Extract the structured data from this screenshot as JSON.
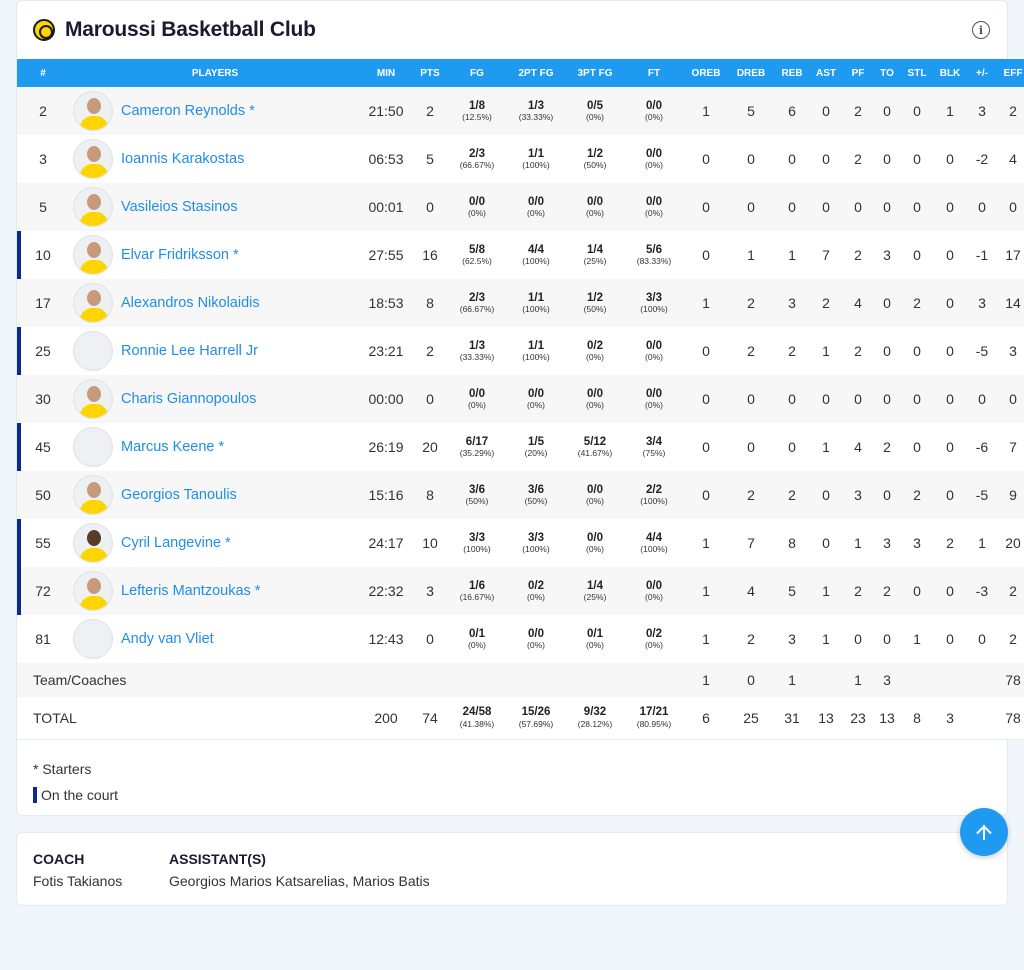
{
  "team": {
    "name": "Maroussi Basketball Club"
  },
  "columns": [
    "#",
    "PLAYERS",
    "MIN",
    "PTS",
    "FG",
    "2PT FG",
    "3PT FG",
    "FT",
    "OREB",
    "DREB",
    "REB",
    "AST",
    "PF",
    "TO",
    "STL",
    "BLK",
    "+/-",
    "EFF"
  ],
  "players": [
    {
      "num": "2",
      "name": "Cameron Reynolds *",
      "on_court": false,
      "avatar": "photo",
      "min": "21:50",
      "pts": "2",
      "fg": "1/8",
      "fg_pct": "(12.5%)",
      "fg2": "1/3",
      "fg2_pct": "(33.33%)",
      "fg3": "0/5",
      "fg3_pct": "(0%)",
      "ft": "0/0",
      "ft_pct": "(0%)",
      "oreb": "1",
      "dreb": "5",
      "reb": "6",
      "ast": "0",
      "pf": "2",
      "to": "0",
      "stl": "0",
      "blk": "1",
      "pm": "3",
      "eff": "2"
    },
    {
      "num": "3",
      "name": "Ioannis Karakostas",
      "on_court": false,
      "avatar": "photo",
      "min": "06:53",
      "pts": "5",
      "fg": "2/3",
      "fg_pct": "(66.67%)",
      "fg2": "1/1",
      "fg2_pct": "(100%)",
      "fg3": "1/2",
      "fg3_pct": "(50%)",
      "ft": "0/0",
      "ft_pct": "(0%)",
      "oreb": "0",
      "dreb": "0",
      "reb": "0",
      "ast": "0",
      "pf": "2",
      "to": "0",
      "stl": "0",
      "blk": "0",
      "pm": "-2",
      "eff": "4"
    },
    {
      "num": "5",
      "name": "Vasileios Stasinos",
      "on_court": false,
      "avatar": "photo",
      "min": "00:01",
      "pts": "0",
      "fg": "0/0",
      "fg_pct": "(0%)",
      "fg2": "0/0",
      "fg2_pct": "(0%)",
      "fg3": "0/0",
      "fg3_pct": "(0%)",
      "ft": "0/0",
      "ft_pct": "(0%)",
      "oreb": "0",
      "dreb": "0",
      "reb": "0",
      "ast": "0",
      "pf": "0",
      "to": "0",
      "stl": "0",
      "blk": "0",
      "pm": "0",
      "eff": "0"
    },
    {
      "num": "10",
      "name": "Elvar Fridriksson *",
      "on_court": true,
      "avatar": "photo",
      "min": "27:55",
      "pts": "16",
      "fg": "5/8",
      "fg_pct": "(62.5%)",
      "fg2": "4/4",
      "fg2_pct": "(100%)",
      "fg3": "1/4",
      "fg3_pct": "(25%)",
      "ft": "5/6",
      "ft_pct": "(83.33%)",
      "oreb": "0",
      "dreb": "1",
      "reb": "1",
      "ast": "7",
      "pf": "2",
      "to": "3",
      "stl": "0",
      "blk": "0",
      "pm": "-1",
      "eff": "17"
    },
    {
      "num": "17",
      "name": "Alexandros Nikolaidis",
      "on_court": false,
      "avatar": "photo",
      "min": "18:53",
      "pts": "8",
      "fg": "2/3",
      "fg_pct": "(66.67%)",
      "fg2": "1/1",
      "fg2_pct": "(100%)",
      "fg3": "1/2",
      "fg3_pct": "(50%)",
      "ft": "3/3",
      "ft_pct": "(100%)",
      "oreb": "1",
      "dreb": "2",
      "reb": "3",
      "ast": "2",
      "pf": "4",
      "to": "0",
      "stl": "2",
      "blk": "0",
      "pm": "3",
      "eff": "14"
    },
    {
      "num": "25",
      "name": "Ronnie Lee Harrell Jr",
      "on_court": true,
      "avatar": "blank",
      "min": "23:21",
      "pts": "2",
      "fg": "1/3",
      "fg_pct": "(33.33%)",
      "fg2": "1/1",
      "fg2_pct": "(100%)",
      "fg3": "0/2",
      "fg3_pct": "(0%)",
      "ft": "0/0",
      "ft_pct": "(0%)",
      "oreb": "0",
      "dreb": "2",
      "reb": "2",
      "ast": "1",
      "pf": "2",
      "to": "0",
      "stl": "0",
      "blk": "0",
      "pm": "-5",
      "eff": "3"
    },
    {
      "num": "30",
      "name": "Charis Giannopoulos",
      "on_court": false,
      "avatar": "photo",
      "min": "00:00",
      "pts": "0",
      "fg": "0/0",
      "fg_pct": "(0%)",
      "fg2": "0/0",
      "fg2_pct": "(0%)",
      "fg3": "0/0",
      "fg3_pct": "(0%)",
      "ft": "0/0",
      "ft_pct": "(0%)",
      "oreb": "0",
      "dreb": "0",
      "reb": "0",
      "ast": "0",
      "pf": "0",
      "to": "0",
      "stl": "0",
      "blk": "0",
      "pm": "0",
      "eff": "0"
    },
    {
      "num": "45",
      "name": "Marcus Keene *",
      "on_court": true,
      "avatar": "blank",
      "min": "26:19",
      "pts": "20",
      "fg": "6/17",
      "fg_pct": "(35.29%)",
      "fg2": "1/5",
      "fg2_pct": "(20%)",
      "fg3": "5/12",
      "fg3_pct": "(41.67%)",
      "ft": "3/4",
      "ft_pct": "(75%)",
      "oreb": "0",
      "dreb": "0",
      "reb": "0",
      "ast": "1",
      "pf": "4",
      "to": "2",
      "stl": "0",
      "blk": "0",
      "pm": "-6",
      "eff": "7"
    },
    {
      "num": "50",
      "name": "Georgios Tanoulis",
      "on_court": false,
      "avatar": "photo",
      "min": "15:16",
      "pts": "8",
      "fg": "3/6",
      "fg_pct": "(50%)",
      "fg2": "3/6",
      "fg2_pct": "(50%)",
      "fg3": "0/0",
      "fg3_pct": "(0%)",
      "ft": "2/2",
      "ft_pct": "(100%)",
      "oreb": "0",
      "dreb": "2",
      "reb": "2",
      "ast": "0",
      "pf": "3",
      "to": "0",
      "stl": "2",
      "blk": "0",
      "pm": "-5",
      "eff": "9"
    },
    {
      "num": "55",
      "name": "Cyril Langevine *",
      "on_court": true,
      "avatar": "dark",
      "min": "24:17",
      "pts": "10",
      "fg": "3/3",
      "fg_pct": "(100%)",
      "fg2": "3/3",
      "fg2_pct": "(100%)",
      "fg3": "0/0",
      "fg3_pct": "(0%)",
      "ft": "4/4",
      "ft_pct": "(100%)",
      "oreb": "1",
      "dreb": "7",
      "reb": "8",
      "ast": "0",
      "pf": "1",
      "to": "3",
      "stl": "3",
      "blk": "2",
      "pm": "1",
      "eff": "20"
    },
    {
      "num": "72",
      "name": "Lefteris Mantzoukas *",
      "on_court": true,
      "avatar": "photo",
      "min": "22:32",
      "pts": "3",
      "fg": "1/6",
      "fg_pct": "(16.67%)",
      "fg2": "0/2",
      "fg2_pct": "(0%)",
      "fg3": "1/4",
      "fg3_pct": "(25%)",
      "ft": "0/0",
      "ft_pct": "(0%)",
      "oreb": "1",
      "dreb": "4",
      "reb": "5",
      "ast": "1",
      "pf": "2",
      "to": "2",
      "stl": "0",
      "blk": "0",
      "pm": "-3",
      "eff": "2"
    },
    {
      "num": "81",
      "name": "Andy van Vliet",
      "on_court": false,
      "avatar": "blank",
      "min": "12:43",
      "pts": "0",
      "fg": "0/1",
      "fg_pct": "(0%)",
      "fg2": "0/0",
      "fg2_pct": "(0%)",
      "fg3": "0/1",
      "fg3_pct": "(0%)",
      "ft": "0/2",
      "ft_pct": "(0%)",
      "oreb": "1",
      "dreb": "2",
      "reb": "3",
      "ast": "1",
      "pf": "0",
      "to": "0",
      "stl": "1",
      "blk": "0",
      "pm": "0",
      "eff": "2"
    }
  ],
  "team_row": {
    "label": "Team/Coaches",
    "oreb": "1",
    "dreb": "0",
    "reb": "1",
    "ast": "",
    "pf": "1",
    "to": "3",
    "stl": "",
    "blk": "",
    "pm": "",
    "eff": "78"
  },
  "total_row": {
    "label": "TOTAL",
    "min": "200",
    "pts": "74",
    "fg": "24/58",
    "fg_pct": "(41.38%)",
    "fg2": "15/26",
    "fg2_pct": "(57.69%)",
    "fg3": "9/32",
    "fg3_pct": "(28.12%)",
    "ft": "17/21",
    "ft_pct": "(80.95%)",
    "oreb": "6",
    "dreb": "25",
    "reb": "31",
    "ast": "13",
    "pf": "23",
    "to": "13",
    "stl": "8",
    "blk": "3",
    "pm": "",
    "eff": "78"
  },
  "legend": {
    "starters": "* Starters",
    "on_court": "On the court"
  },
  "coaches": {
    "coach_title": "COACH",
    "coach_name": "Fotis Takianos",
    "assistants_title": "ASSISTANT(S)",
    "assistants_names": "Georgios Marios Katsarelias, Marios Batis"
  },
  "icons": {
    "info": "info-icon",
    "scroll_top": "arrow-up-icon",
    "logo": "team-logo"
  },
  "colors": {
    "header_blue": "#1e9bf0",
    "link_blue": "#1e8ee8",
    "on_court_bar": "#0a2a8c"
  }
}
